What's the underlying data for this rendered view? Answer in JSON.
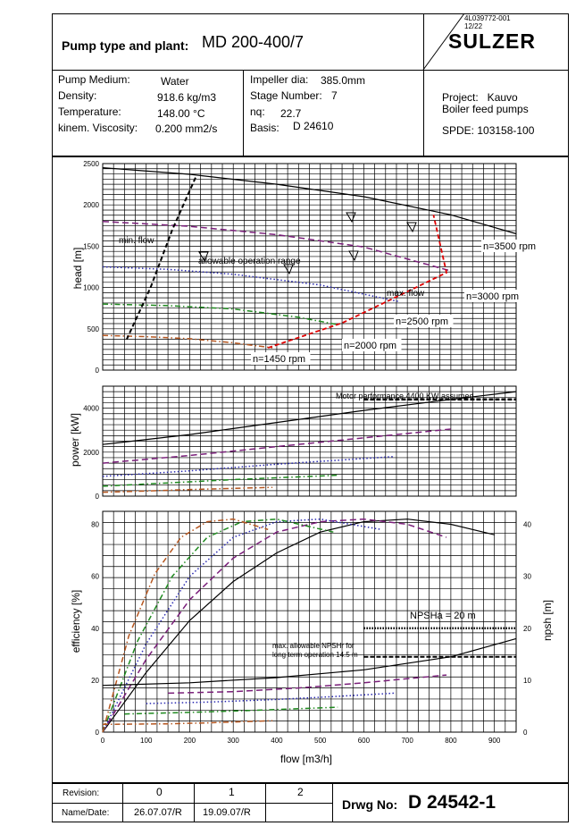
{
  "header": {
    "pump_label": "Pump type and plant:",
    "pump_type": "MD 200-400/7",
    "doc_number": "4L039772-001",
    "doc_rev": "12/22",
    "brand": "SULZER"
  },
  "specs_left": [
    {
      "label": "Pump Medium:",
      "value": "Water"
    },
    {
      "label": "Density:",
      "value": "918.6 kg/m3"
    },
    {
      "label": "Temperature:",
      "value": "148.00 °C"
    },
    {
      "label": "kinem. Viscosity:",
      "value": "0.200 mm2/s"
    }
  ],
  "specs_mid": [
    {
      "label": "Impeller dia:",
      "value": "385.0mm"
    },
    {
      "label": "Stage Number:",
      "value": "7"
    },
    {
      "label": "nq:",
      "value": "22.7"
    },
    {
      "label": "Basis:",
      "value": "D 24610"
    }
  ],
  "project": {
    "line1": "Project:   Kauvo",
    "line2": "Boiler feed pumps",
    "spde": "SPDE: 103158-100"
  },
  "footer": {
    "revision_label": "Revision:",
    "namedate_label": "Name/Date:",
    "revisions": [
      "0",
      "1",
      "2"
    ],
    "dates": [
      "26.07.07/R",
      "19.09.07/R",
      ""
    ],
    "drwg_label": "Drwg No:",
    "drwg_no": "D 24542-1"
  },
  "colors": {
    "rpm3500": "#000000",
    "rpm3000": "#7a1f7a",
    "rpm2500": "#2a2ab0",
    "rpm2000": "#1f8a1f",
    "rpm1450": "#b5561f",
    "limit": "#e00000"
  },
  "chart_data": [
    {
      "type": "line",
      "xlabel": "",
      "ylabel": "head [m]",
      "xlim": [
        0,
        950
      ],
      "ylim": [
        0,
        2500
      ],
      "y_ticks": [
        "0",
        "500",
        "1000",
        "1500",
        "2000",
        "2500"
      ],
      "series": [
        {
          "name": "n=3500 rpm",
          "style": "solid",
          "color_key": "rpm3500",
          "x": [
            0,
            200,
            400,
            600,
            800,
            950
          ],
          "y": [
            2450,
            2370,
            2250,
            2100,
            1880,
            1650
          ]
        },
        {
          "name": "n=3000 rpm",
          "style": "dashed",
          "color_key": "rpm3000",
          "x": [
            0,
            200,
            400,
            600,
            800
          ],
          "y": [
            1800,
            1740,
            1640,
            1490,
            1200
          ]
        },
        {
          "name": "n=2500 rpm",
          "style": "dotted",
          "color_key": "rpm2500",
          "x": [
            0,
            150,
            300,
            500,
            680
          ],
          "y": [
            1250,
            1220,
            1160,
            1030,
            830
          ]
        },
        {
          "name": "n=2000 rpm",
          "style": "dashdot",
          "color_key": "rpm2000",
          "x": [
            0,
            150,
            300,
            450,
            540
          ],
          "y": [
            800,
            780,
            740,
            640,
            550
          ]
        },
        {
          "name": "n=1450 rpm",
          "style": "dashdot",
          "color_key": "rpm1450",
          "x": [
            0,
            100,
            200,
            300,
            390
          ],
          "y": [
            420,
            405,
            380,
            330,
            270
          ]
        }
      ],
      "limits": [
        {
          "name": "min. flow",
          "x": [
            55,
            110,
            160,
            215
          ],
          "y": [
            370,
            1000,
            1700,
            2350
          ]
        },
        {
          "name": "max. flow",
          "x": [
            380,
            550,
            700,
            790,
            760
          ],
          "y": [
            270,
            570,
            950,
            1180,
            1880
          ]
        }
      ],
      "annotations": [
        "min. flow",
        "allowable operation range",
        "max. flow",
        "n=3500 rpm",
        "n=3000 rpm",
        "n=2500 rpm",
        "n=2000 rpm",
        "n=1450 rpm"
      ]
    },
    {
      "type": "line",
      "xlabel": "",
      "ylabel": "power [kW]",
      "xlim": [
        0,
        950
      ],
      "ylim": [
        0,
        5000
      ],
      "y_ticks": [
        "0",
        "2000",
        "4000"
      ],
      "series": [
        {
          "name": "n=3500 rpm",
          "style": "solid",
          "color_key": "rpm3500",
          "x": [
            0,
            200,
            400,
            600,
            800,
            950
          ],
          "y": [
            2350,
            2800,
            3350,
            3900,
            4400,
            4750
          ]
        },
        {
          "name": "n=3000 rpm",
          "style": "dashed",
          "color_key": "rpm3000",
          "x": [
            0,
            200,
            400,
            600,
            800
          ],
          "y": [
            1500,
            1850,
            2250,
            2650,
            3050
          ]
        },
        {
          "name": "n=2500 rpm",
          "style": "dotted",
          "color_key": "rpm2500",
          "x": [
            0,
            200,
            400,
            670
          ],
          "y": [
            900,
            1150,
            1450,
            1800
          ]
        },
        {
          "name": "n=2000 rpm",
          "style": "dashdot",
          "color_key": "rpm2000",
          "x": [
            0,
            150,
            300,
            540
          ],
          "y": [
            450,
            600,
            750,
            950
          ]
        },
        {
          "name": "n=1450 rpm",
          "style": "dashdot",
          "color_key": "rpm1450",
          "x": [
            0,
            100,
            200,
            390
          ],
          "y": [
            180,
            230,
            300,
            400
          ]
        }
      ],
      "reference_lines": [
        {
          "name": "motor performance",
          "y": 4400
        }
      ],
      "annotations": [
        "Motor performance 4400 KW assumed"
      ]
    },
    {
      "type": "line",
      "xlabel": "flow [m3/h]",
      "ylabel": "efficiency [%]",
      "y2label": "npsh [m]",
      "xlim": [
        0,
        950
      ],
      "ylim": [
        0,
        85
      ],
      "y2lim": [
        0,
        42.5
      ],
      "x_ticks": [
        "0",
        "100",
        "200",
        "300",
        "400",
        "500",
        "600",
        "700",
        "800",
        "900"
      ],
      "y_ticks": [
        "0",
        "20",
        "40",
        "60",
        "80"
      ],
      "y2_ticks": [
        "0",
        "10",
        "20",
        "30",
        "40"
      ],
      "series": [
        {
          "name": "n=3500 rpm",
          "style": "solid",
          "color_key": "rpm3500",
          "x": [
            0,
            100,
            200,
            300,
            400,
            500,
            600,
            700,
            800,
            900
          ],
          "y": [
            0,
            23,
            43,
            58,
            69,
            77,
            81,
            82,
            80,
            76
          ]
        },
        {
          "name": "n=3000 rpm",
          "style": "dashed",
          "color_key": "rpm3000",
          "x": [
            0,
            100,
            200,
            300,
            400,
            500,
            600,
            700,
            790
          ],
          "y": [
            0,
            28,
            51,
            67,
            77,
            81,
            82,
            80,
            75
          ]
        },
        {
          "name": "n=2500 rpm",
          "style": "dotted",
          "color_key": "rpm2500",
          "x": [
            0,
            100,
            200,
            300,
            400,
            500,
            640
          ],
          "y": [
            0,
            34,
            60,
            75,
            81,
            82,
            78
          ]
        },
        {
          "name": "n=2000 rpm",
          "style": "dashdot",
          "color_key": "rpm2000",
          "x": [
            0,
            80,
            160,
            240,
            320,
            400,
            530
          ],
          "y": [
            0,
            35,
            60,
            75,
            81,
            82,
            77
          ]
        },
        {
          "name": "n=1450 rpm",
          "style": "dashdot",
          "color_key": "rpm1450",
          "x": [
            0,
            60,
            120,
            180,
            240,
            300,
            380
          ],
          "y": [
            0,
            37,
            61,
            75,
            81,
            82,
            78
          ]
        }
      ],
      "npsh_series": [
        {
          "name": "n=3500 rpm",
          "style": "solid",
          "color_key": "rpm3500",
          "x": [
            0,
            200,
            400,
            600,
            800,
            950
          ],
          "y": [
            9,
            9.5,
            10.5,
            12,
            14.5,
            18
          ]
        },
        {
          "name": "n=3000 rpm",
          "style": "dashed",
          "color_key": "rpm3000",
          "x": [
            150,
            300,
            450,
            600,
            790
          ],
          "y": [
            7.5,
            7.8,
            8.5,
            9.5,
            11
          ]
        },
        {
          "name": "n=2500 rpm",
          "style": "dotted",
          "color_key": "rpm2500",
          "x": [
            100,
            250,
            400,
            520,
            670
          ],
          "y": [
            5.5,
            5.8,
            6.3,
            6.8,
            7.5
          ]
        },
        {
          "name": "n=2000 rpm",
          "style": "dashdot",
          "color_key": "rpm2000",
          "x": [
            50,
            200,
            350,
            540
          ],
          "y": [
            3.5,
            3.8,
            4.2,
            4.8
          ]
        },
        {
          "name": "n=1450 rpm",
          "style": "dashdot",
          "color_key": "rpm1450",
          "x": [
            0,
            150,
            250,
            390
          ],
          "y": [
            1.5,
            1.6,
            1.8,
            2.2
          ]
        }
      ],
      "reference_lines": [
        {
          "name": "NPSHa",
          "y2": 20
        },
        {
          "name": "max. allowable NPSHr",
          "y2": 14.5
        }
      ],
      "annotations": [
        "NPSHa = 20 m",
        "max. allowable NPSHr for",
        "long term operation 14.5 m"
      ]
    }
  ]
}
